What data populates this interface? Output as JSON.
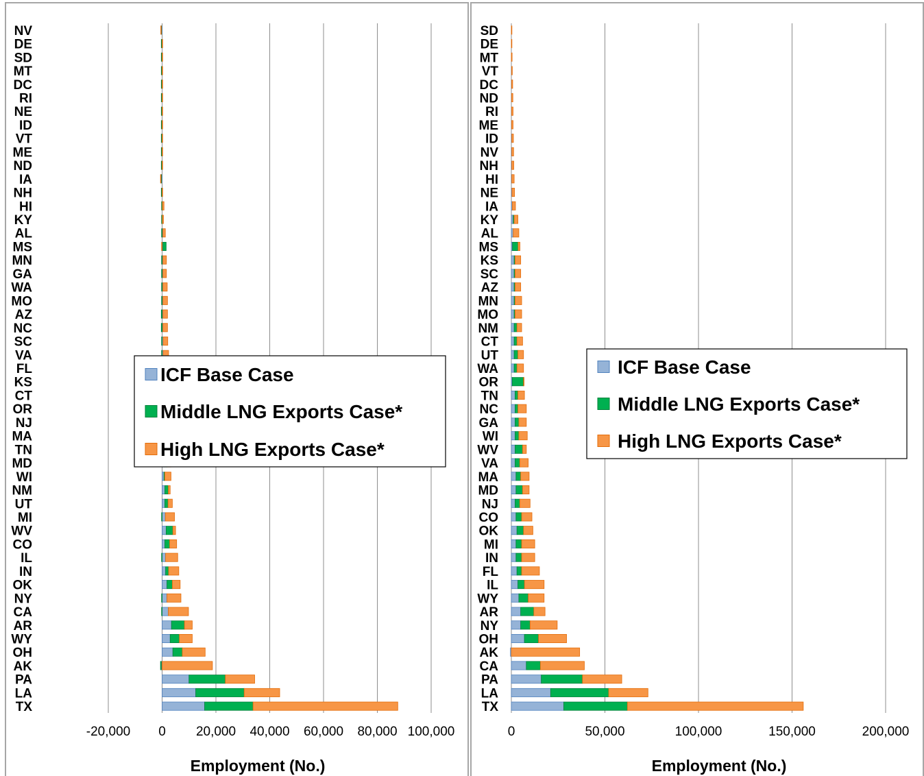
{
  "chart_data": [
    {
      "type": "bar",
      "orientation": "horizontal",
      "stacked": true,
      "title": "",
      "xlabel": "Employment (No.)",
      "ylabel": "",
      "xlim": [
        -20000,
        100000
      ],
      "xticks": [
        -20000,
        0,
        20000,
        40000,
        60000,
        80000,
        100000
      ],
      "xtick_labels": [
        "-20,000",
        "0",
        "20,000",
        "40,000",
        "60,000",
        "80,000",
        "100,000"
      ],
      "grid": "vertical",
      "legend_position": "center-right",
      "categories": [
        "NV",
        "DE",
        "SD",
        "MT",
        "DC",
        "RI",
        "NE",
        "ID",
        "VT",
        "ME",
        "ND",
        "IA",
        "NH",
        "HI",
        "KY",
        "AL",
        "MS",
        "MN",
        "GA",
        "WA",
        "MO",
        "AZ",
        "NC",
        "SC",
        "VA",
        "FL",
        "KS",
        "CT",
        "OR",
        "NJ",
        "MA",
        "TN",
        "MD",
        "WI",
        "NM",
        "UT",
        "MI",
        "WV",
        "CO",
        "IL",
        "IN",
        "OK",
        "NY",
        "CA",
        "AR",
        "WY",
        "OH",
        "AK",
        "PA",
        "LA",
        "TX"
      ],
      "series": [
        {
          "name": "ICF Base Case",
          "color": "#95b3d7",
          "stroke": "#4f81bd",
          "values": [
            -200,
            -100,
            -100,
            -100,
            -100,
            -100,
            -100,
            -100,
            -100,
            -100,
            -100,
            -200,
            -100,
            100,
            100,
            300,
            300,
            300,
            300,
            300,
            300,
            300,
            300,
            400,
            400,
            -100,
            400,
            400,
            300,
            500,
            500,
            600,
            600,
            700,
            1000,
            1000,
            1200,
            1500,
            1000,
            1300,
            1300,
            1800,
            1800,
            2300,
            3500,
            3000,
            4000,
            -300,
            10000,
            12500,
            15800
          ]
        },
        {
          "name": "Middle LNG Exports Case*",
          "color": "#00b050",
          "stroke": "#00803a",
          "values": [
            -200,
            -200,
            -200,
            -200,
            -200,
            -200,
            -200,
            -200,
            -200,
            -200,
            -200,
            -300,
            -200,
            -200,
            -200,
            -200,
            1200,
            -200,
            -200,
            -200,
            -200,
            -300,
            -300,
            -200,
            -200,
            -1200,
            400,
            600,
            2400,
            -200,
            -200,
            300,
            1200,
            300,
            1300,
            1200,
            -200,
            2500,
            1800,
            -200,
            1100,
            2000,
            -200,
            -200,
            4800,
            3400,
            3500,
            -300,
            13500,
            18000,
            18000
          ]
        },
        {
          "name": "High LNG Exports Case*",
          "color": "#f79646",
          "stroke": "#e36c09",
          "values": [
            -100,
            100,
            100,
            100,
            100,
            100,
            100,
            100,
            100,
            100,
            100,
            -100,
            100,
            600,
            400,
            900,
            -200,
            1300,
            1300,
            1600,
            1700,
            1700,
            1700,
            1700,
            2000,
            2400,
            1400,
            1200,
            -200,
            2600,
            2400,
            2400,
            1500,
            2300,
            700,
            1600,
            3400,
            1000,
            2600,
            4500,
            3800,
            2900,
            5200,
            7500,
            2900,
            4800,
            8500,
            18700,
            10900,
            13200,
            53800
          ]
        }
      ]
    },
    {
      "type": "bar",
      "orientation": "horizontal",
      "stacked": true,
      "title": "",
      "xlabel": "Employment (No.)",
      "ylabel": "",
      "xlim": [
        0,
        200000
      ],
      "xticks": [
        0,
        50000,
        100000,
        150000,
        200000
      ],
      "xtick_labels": [
        "0",
        "50,000",
        "100,000",
        "150,000",
        "200,000"
      ],
      "grid": "vertical",
      "legend_position": "center-right",
      "categories": [
        "SD",
        "DE",
        "MT",
        "VT",
        "DC",
        "ND",
        "RI",
        "ME",
        "ID",
        "NV",
        "NH",
        "HI",
        "NE",
        "IA",
        "KY",
        "AL",
        "MS",
        "KS",
        "SC",
        "AZ",
        "MN",
        "MO",
        "NM",
        "CT",
        "UT",
        "WA",
        "OR",
        "TN",
        "NC",
        "GA",
        "WI",
        "WV",
        "VA",
        "MA",
        "MD",
        "NJ",
        "CO",
        "OK",
        "MI",
        "IN",
        "FL",
        "IL",
        "WY",
        "AR",
        "NY",
        "OH",
        "AK",
        "CA",
        "PA",
        "LA",
        "TX"
      ],
      "series": [
        {
          "name": "ICF Base Case",
          "color": "#95b3d7",
          "stroke": "#4f81bd",
          "values": [
            0,
            0,
            0,
            100,
            100,
            100,
            100,
            100,
            200,
            200,
            200,
            200,
            300,
            500,
            1000,
            1000,
            600,
            1500,
            1500,
            1500,
            1500,
            1500,
            1500,
            1500,
            1500,
            1500,
            500,
            2000,
            2000,
            2000,
            2000,
            2000,
            2000,
            2500,
            2500,
            2000,
            2500,
            3000,
            2500,
            2500,
            3000,
            3500,
            4000,
            5000,
            5000,
            7000,
            -500,
            8000,
            16000,
            21000,
            28000
          ]
        },
        {
          "name": "Middle LNG Exports Case*",
          "color": "#00b050",
          "stroke": "#00803a",
          "values": [
            0,
            0,
            0,
            0,
            0,
            0,
            0,
            0,
            0,
            0,
            0,
            0,
            0,
            0,
            500,
            0,
            3000,
            500,
            500,
            500,
            500,
            500,
            1500,
            1500,
            2000,
            1500,
            6000,
            1500,
            1500,
            2000,
            2000,
            4000,
            2500,
            2500,
            3500,
            2500,
            3000,
            3500,
            3000,
            3000,
            2500,
            3500,
            5000,
            7000,
            5000,
            7500,
            0,
            7500,
            22000,
            31000,
            34000
          ]
        },
        {
          "name": "High LNG Exports Case*",
          "color": "#f79646",
          "stroke": "#e36c09",
          "values": [
            300,
            300,
            400,
            400,
            600,
            700,
            800,
            800,
            900,
            1000,
            1100,
            1300,
            1400,
            1700,
            2000,
            3000,
            1000,
            3000,
            3000,
            3000,
            3500,
            3500,
            2500,
            3000,
            3000,
            3500,
            300,
            3500,
            4500,
            4000,
            4500,
            2000,
            4500,
            4500,
            3500,
            5500,
            5500,
            5000,
            7000,
            7000,
            9500,
            10500,
            8500,
            6000,
            14500,
            15000,
            36500,
            23500,
            21000,
            21000,
            94000
          ]
        }
      ]
    }
  ]
}
